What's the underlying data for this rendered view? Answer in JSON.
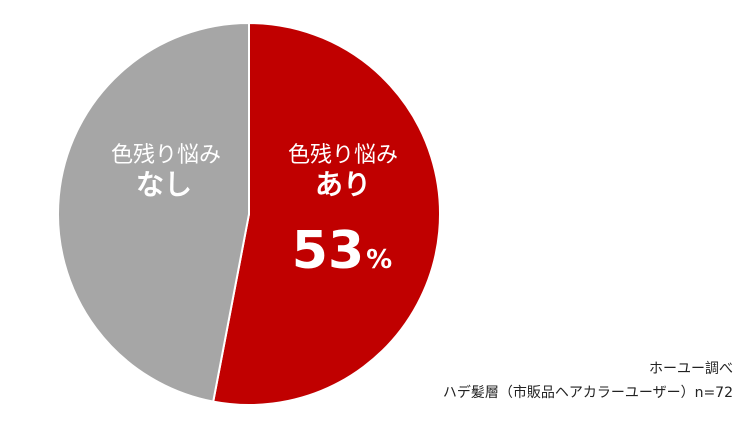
{
  "chart_data": {
    "type": "pie",
    "slices": [
      {
        "label_line1": "色残り悩み",
        "label_line2": "あり",
        "value": 53,
        "value_text": "53",
        "unit": "%",
        "color": "#c00000"
      },
      {
        "label_line1": "色残り悩み",
        "label_line2": "なし",
        "value": 47,
        "color": "#a6a6a6"
      }
    ],
    "start": "top",
    "direction": "clockwise",
    "title": ""
  },
  "source": {
    "line1": "ホーユー調べ",
    "line2": "ハデ髪層（市販品ヘアカラーユーザー）n=72"
  }
}
